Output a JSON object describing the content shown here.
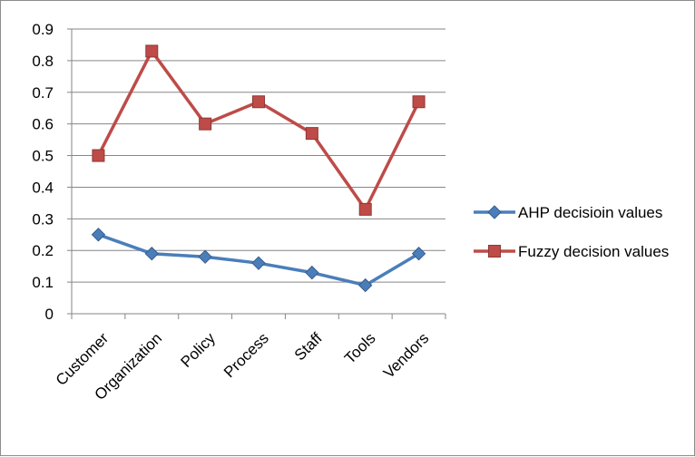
{
  "chart_data": {
    "type": "line",
    "categories": [
      "Customer",
      "Organization",
      "Policy",
      "Process",
      "Staff",
      "Tools",
      "Vendors"
    ],
    "series": [
      {
        "name": "AHP decisioin values",
        "values": [
          0.25,
          0.19,
          0.18,
          0.16,
          0.13,
          0.09,
          0.19
        ],
        "color": "#4a7ebb",
        "marker": "diamond"
      },
      {
        "name": "Fuzzy decision values",
        "values": [
          0.5,
          0.83,
          0.6,
          0.67,
          0.57,
          0.33,
          0.67
        ],
        "color": "#be4b48",
        "marker": "square"
      }
    ],
    "ylim": [
      0,
      0.9
    ],
    "yticks": [
      "0",
      "0.1",
      "0.2",
      "0.3",
      "0.4",
      "0.5",
      "0.6",
      "0.7",
      "0.8",
      "0.9"
    ],
    "grid": true,
    "legend_position": "right",
    "title": "",
    "xlabel": "",
    "ylabel": ""
  }
}
